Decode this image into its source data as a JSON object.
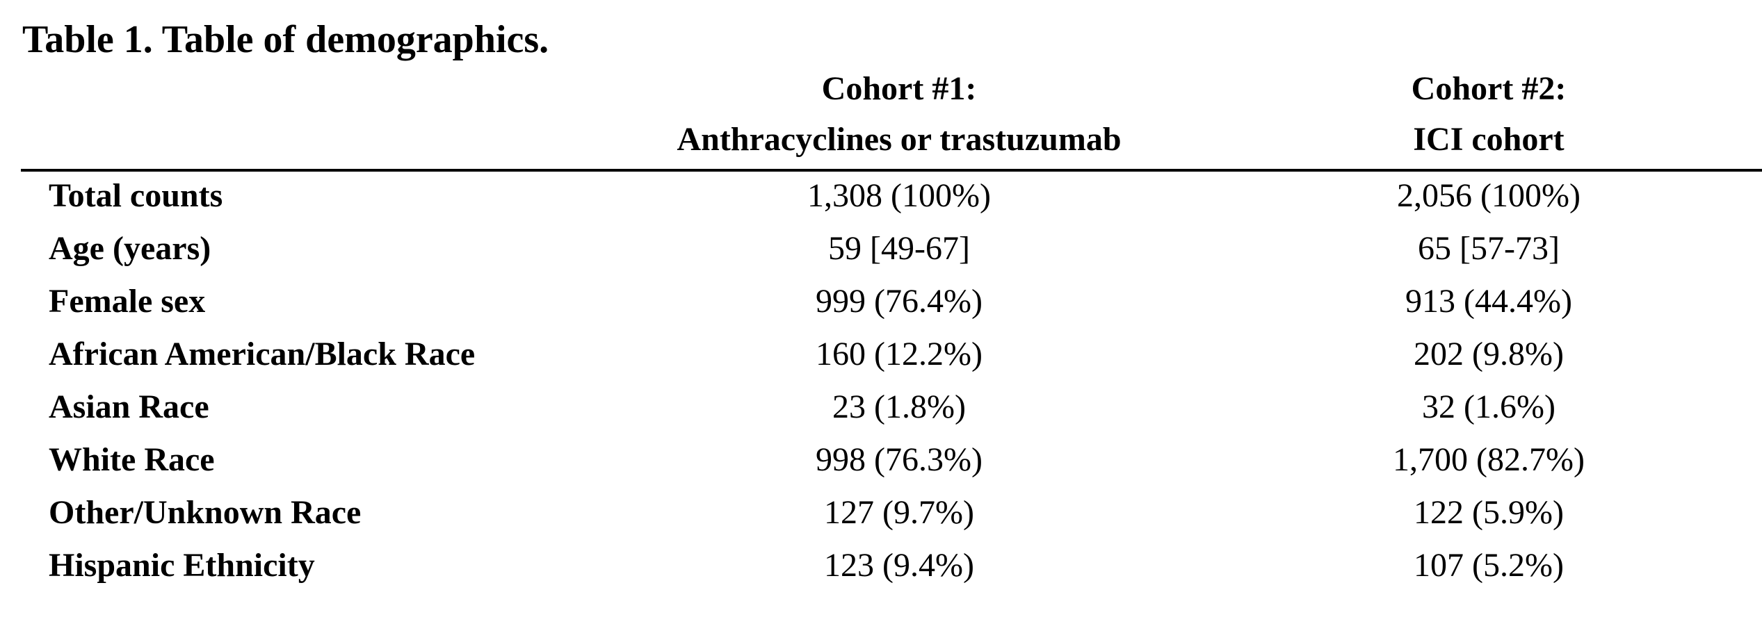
{
  "title": "Table 1. Table of demographics.",
  "table": {
    "headers": [
      [
        "Cohort #1:",
        "Anthracyclines or trastuzumab"
      ],
      [
        "Cohort #2:",
        "ICI cohort"
      ]
    ],
    "rows": [
      [
        "Total counts",
        "1,308 (100%)",
        "2,056 (100%)"
      ],
      [
        "Age (years)",
        "59 [49-67]",
        "65 [57-73]"
      ],
      [
        "Female sex",
        "999 (76.4%)",
        "913 (44.4%)"
      ],
      [
        "African American/Black Race",
        "160 (12.2%)",
        "202 (9.8%)"
      ],
      [
        "Asian Race",
        "23 (1.8%)",
        "32 (1.6%)"
      ],
      [
        "White Race",
        "998 (76.3%)",
        "1,700 (82.7%)"
      ],
      [
        "Other/Unknown Race",
        "127 (9.7%)",
        "122 (5.9%)"
      ],
      [
        "Hispanic Ethnicity",
        "123 (9.4%)",
        "107 (5.2%)"
      ]
    ]
  }
}
